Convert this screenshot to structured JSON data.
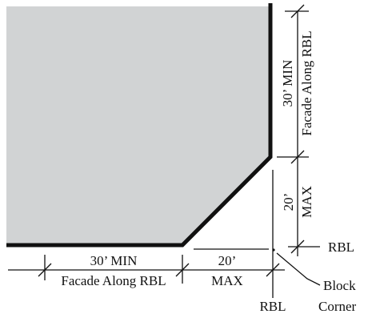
{
  "colors": {
    "block_fill": "#d1d3d4",
    "line": "#111111",
    "background": "#ffffff"
  },
  "labels": {
    "right_upper_min": "30’ MIN",
    "right_upper_facade": "Facade Along RBL",
    "right_lower_value": "20’",
    "right_lower_max": "MAX",
    "rbl_right": "RBL",
    "bottom_left_min": "30’ MIN",
    "bottom_left_facade": "Facade Along RBL",
    "bottom_right_value": "20’",
    "bottom_right_max": "MAX",
    "rbl_bottom": "RBL",
    "block_corner_line1": "Block",
    "block_corner_line2": "Corner"
  }
}
